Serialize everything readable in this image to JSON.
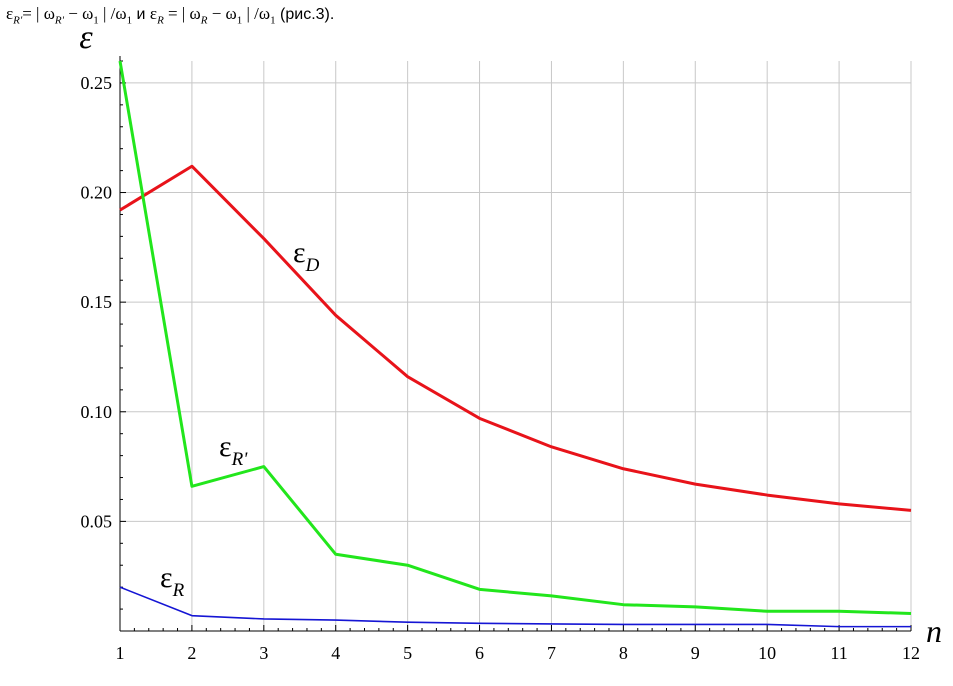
{
  "caption": {
    "formula1_lhs": "ε",
    "formula1_lhs_sub": "R'",
    "formula1_rhs_a": "= | ω",
    "formula1_rhs_a_sub": "R'",
    "formula1_rhs_b": " − ω",
    "formula1_rhs_b_sub": "1",
    "formula1_rhs_c": " | /ω",
    "formula1_rhs_c_sub": "1",
    "conj": "  и  ",
    "formula2_lhs": "ε",
    "formula2_lhs_sub": "R",
    "formula2_rhs_a": " = | ω",
    "formula2_rhs_a_sub": "R",
    "formula2_rhs_b": " − ω",
    "formula2_rhs_b_sub": "1",
    "formula2_rhs_c": " | /ω",
    "formula2_rhs_c_sub": "1",
    "tail": "  (рис.3)."
  },
  "chart_data": {
    "type": "line",
    "xlabel": "n",
    "ylabel": "ε",
    "xlim": [
      1,
      12
    ],
    "ylim": [
      0,
      0.26
    ],
    "x": [
      1,
      2,
      3,
      4,
      5,
      6,
      7,
      8,
      9,
      10,
      11,
      12
    ],
    "xticks": [
      "1",
      "2",
      "3",
      "4",
      "5",
      "6",
      "7",
      "8",
      "9",
      "10",
      "11",
      "12"
    ],
    "yticks": [
      {
        "value": 0.05,
        "label": "0.05"
      },
      {
        "value": 0.1,
        "label": "0.10"
      },
      {
        "value": 0.15,
        "label": "0.15"
      },
      {
        "value": 0.2,
        "label": "0.20"
      },
      {
        "value": 0.25,
        "label": "0.25"
      }
    ],
    "grid": true,
    "series": [
      {
        "name": "ε",
        "name_sub": "D",
        "color": "#e8131a",
        "values": [
          0.192,
          0.212,
          0.179,
          0.144,
          0.116,
          0.097,
          0.084,
          0.074,
          0.067,
          0.062,
          0.058,
          0.055
        ]
      },
      {
        "name": "ε",
        "name_sub": "R'",
        "color": "#22e61c",
        "values": [
          0.26,
          0.066,
          0.075,
          0.035,
          0.03,
          0.019,
          0.016,
          0.012,
          0.011,
          0.009,
          0.009,
          0.008
        ]
      },
      {
        "name": "ε",
        "name_sub": "R",
        "color": "#1515d4",
        "values": [
          0.02,
          0.007,
          0.0055,
          0.005,
          0.004,
          0.0035,
          0.0032,
          0.003,
          0.003,
          0.003,
          0.002,
          0.002
        ]
      }
    ]
  }
}
